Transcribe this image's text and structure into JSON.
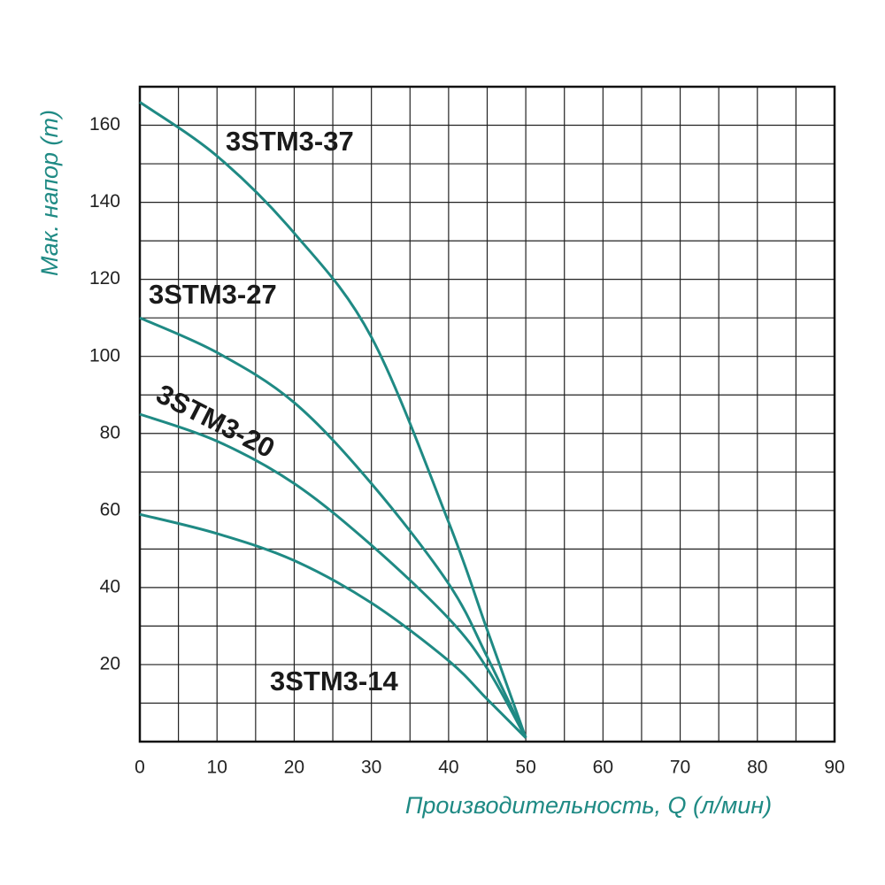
{
  "chart_data": {
    "type": "line",
    "x_label": "Производительность, Q (л/мин)",
    "y_label": "Мак. напор (m)",
    "x": [
      0,
      10,
      20,
      30,
      40,
      45,
      50
    ],
    "series": [
      {
        "name": "3STM3-37",
        "color": "#1f8a84",
        "values": [
          166,
          152,
          132,
          105,
          57,
          29,
          1
        ]
      },
      {
        "name": "3STM3-27",
        "color": "#1f8a84",
        "values": [
          110,
          101,
          88,
          67,
          41,
          22,
          1
        ]
      },
      {
        "name": "3STM3-20",
        "color": "#1f8a84",
        "values": [
          85,
          78,
          67,
          51,
          32,
          19,
          1
        ]
      },
      {
        "name": "3STM3-14",
        "color": "#1f8a84",
        "values": [
          59,
          54,
          47,
          36,
          21,
          11,
          1
        ]
      }
    ],
    "xlim": [
      0,
      90
    ],
    "ylim": [
      0,
      170
    ],
    "xticks": [
      0,
      10,
      20,
      30,
      40,
      50,
      60,
      70,
      80,
      90
    ],
    "yticks": [
      20,
      40,
      60,
      80,
      100,
      120,
      140,
      160
    ],
    "grid": true
  }
}
